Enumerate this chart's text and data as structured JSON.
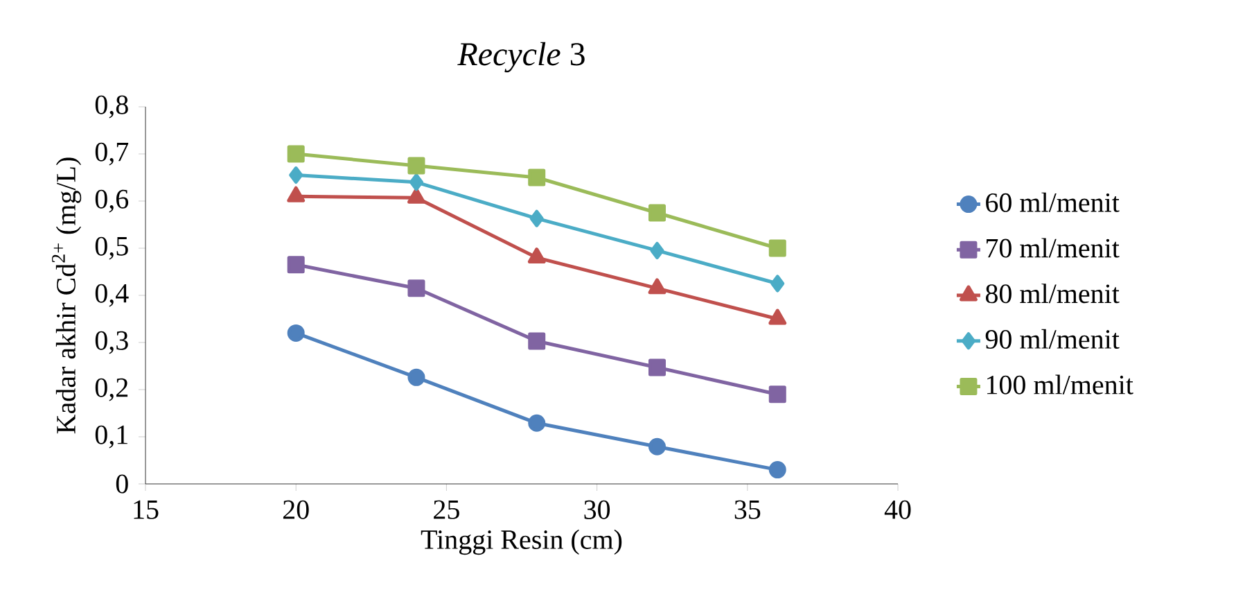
{
  "chart_data": {
    "type": "line",
    "title": "*Recycle* 3",
    "xlabel": "Tinggi Resin (cm)",
    "ylabel": "Kadar akhir Cd$^{2+}$ (mg/L)",
    "x": [
      20,
      24,
      28,
      32,
      36
    ],
    "series": [
      {
        "name": "60 ml/menit",
        "color": "#4f81bd",
        "marker": "circle",
        "values": [
          0.32,
          0.226,
          0.129,
          0.079,
          0.03
        ]
      },
      {
        "name": "70 ml/menit",
        "color": "#8064a2",
        "marker": "square",
        "values": [
          0.465,
          0.415,
          0.303,
          0.247,
          0.19
        ]
      },
      {
        "name": "80 ml/menit",
        "color": "#c0504d",
        "marker": "triangle",
        "values": [
          0.61,
          0.607,
          0.48,
          0.415,
          0.35
        ]
      },
      {
        "name": "90 ml/menit",
        "color": "#4bacc6",
        "marker": "diamond",
        "values": [
          0.655,
          0.64,
          0.563,
          0.495,
          0.425
        ]
      },
      {
        "name": "100 ml/menit",
        "color": "#9bbb59",
        "marker": "square",
        "values": [
          0.7,
          0.675,
          0.65,
          0.575,
          0.5
        ]
      }
    ],
    "xlim": [
      15,
      40
    ],
    "xticks": [
      15,
      20,
      25,
      30,
      35,
      40
    ],
    "ylim": [
      0,
      0.8
    ],
    "yticks": [
      0,
      {
        "value": 0.1,
        "label": "0,1"
      },
      {
        "value": 0.2,
        "label": "0,2"
      },
      {
        "value": 0.3,
        "label": "0,3"
      },
      {
        "value": 0.4,
        "label": "0,4"
      },
      {
        "value": 0.5,
        "label": "0,5"
      },
      {
        "value": 0.6,
        "label": "0,6"
      },
      {
        "value": 0.7,
        "label": "0,7"
      },
      {
        "value": 0.8,
        "label": "0,8"
      }
    ],
    "grid": false,
    "legend": "right"
  }
}
